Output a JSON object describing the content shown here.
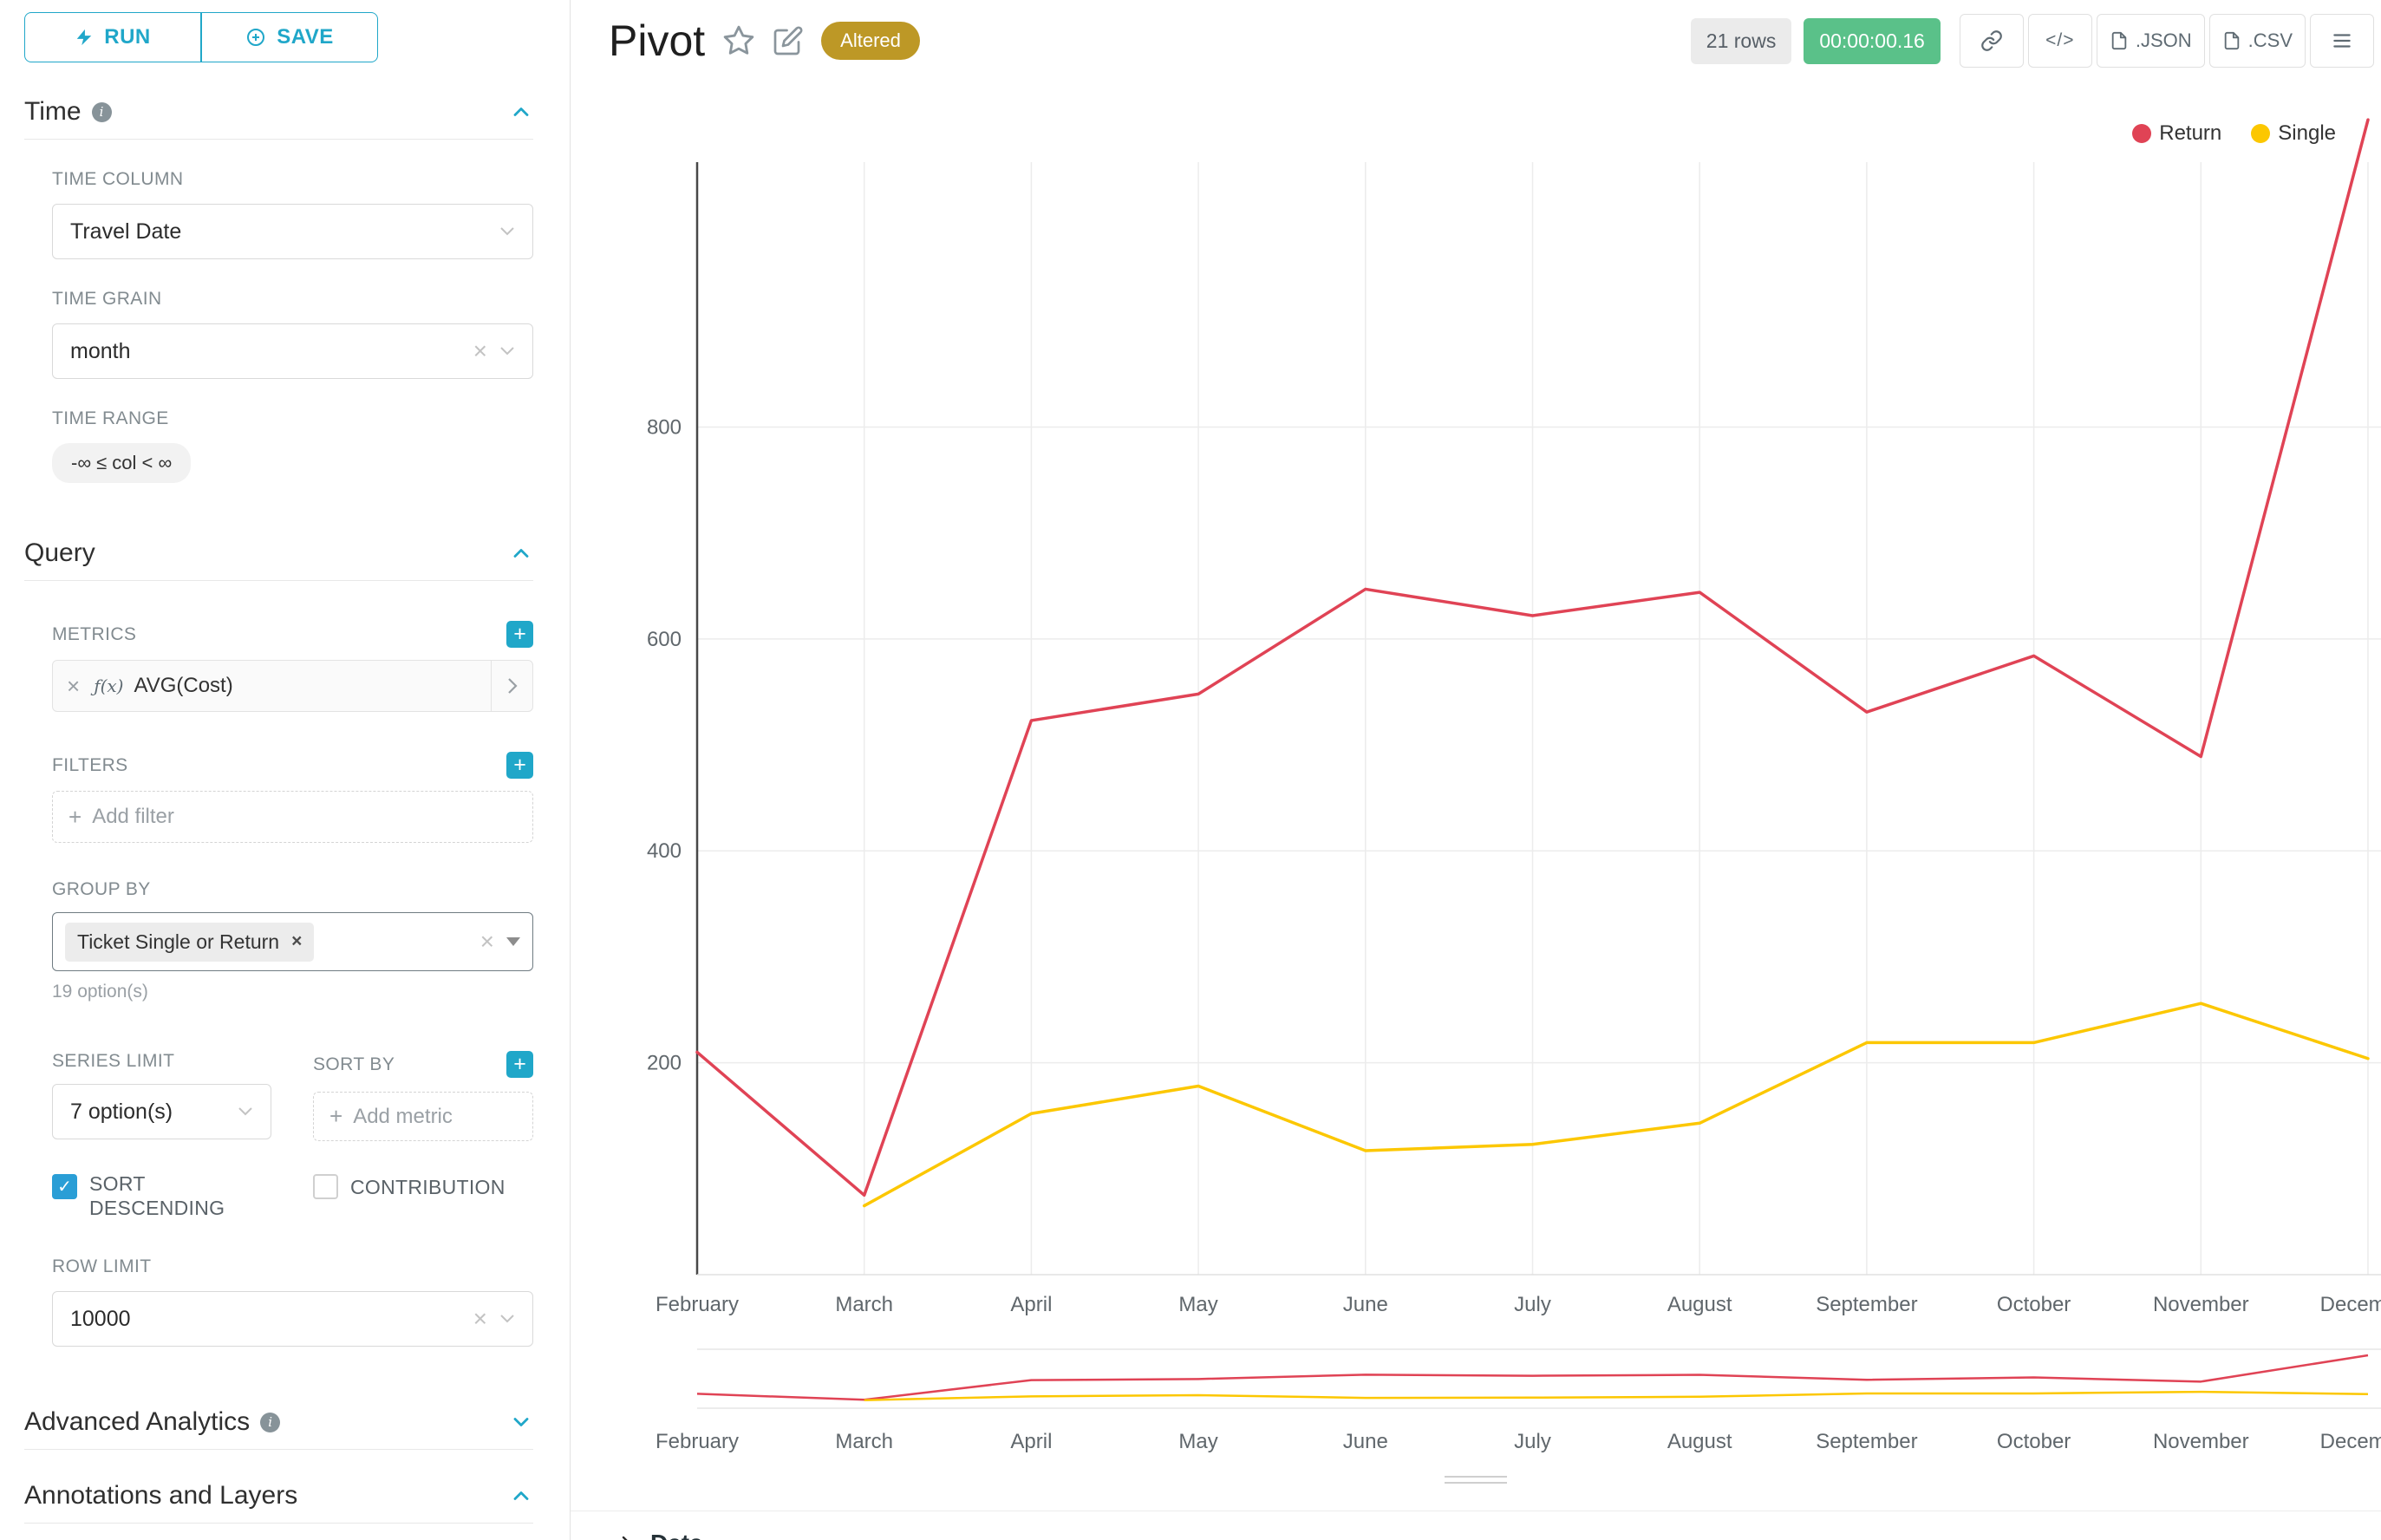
{
  "colors": {
    "accent": "#20a7c9",
    "altered_badge_bg": "#bd9826",
    "timer_bg": "#5ac189",
    "series_return": "#e04355",
    "series_single": "#fcc700"
  },
  "actions": {
    "run": "RUN",
    "save": "SAVE"
  },
  "sidebar": {
    "time": {
      "title": "Time",
      "time_column": {
        "label": "TIME COLUMN",
        "value": "Travel Date"
      },
      "time_grain": {
        "label": "TIME GRAIN",
        "value": "month"
      },
      "time_range": {
        "label": "TIME RANGE",
        "value": "-∞ ≤ col < ∞"
      }
    },
    "query": {
      "title": "Query",
      "metrics": {
        "label": "METRICS",
        "badge": "ƒ(x)",
        "value": "AVG(Cost)"
      },
      "filters": {
        "label": "FILTERS",
        "placeholder": "Add filter"
      },
      "group_by": {
        "label": "GROUP BY",
        "value": "Ticket Single or Return",
        "hint": "19 option(s)"
      },
      "series_limit": {
        "label": "SERIES LIMIT",
        "value": "7 option(s)"
      },
      "sort_by": {
        "label": "SORT BY",
        "placeholder": "Add metric"
      },
      "sort_descending": {
        "label": "SORT DESCENDING",
        "checked": true
      },
      "contribution": {
        "label": "CONTRIBUTION",
        "checked": false
      },
      "row_limit": {
        "label": "ROW LIMIT",
        "value": "10000"
      }
    },
    "advanced_analytics": {
      "title": "Advanced Analytics"
    },
    "annotations": {
      "title": "Annotations and Layers"
    }
  },
  "header": {
    "title": "Pivot",
    "altered_badge": "Altered",
    "rows_badge": "21 rows",
    "timer": "00:00:00.16",
    "export_json": ".JSON",
    "export_csv": ".CSV"
  },
  "chart_data": {
    "type": "line",
    "x": [
      "February",
      "March",
      "April",
      "May",
      "June",
      "July",
      "August",
      "September",
      "October",
      "November",
      "December"
    ],
    "series": [
      {
        "name": "Return",
        "color": "#e04355",
        "values": [
          210,
          75,
          523,
          548,
          647,
          622,
          644,
          531,
          584,
          489,
          1090
        ]
      },
      {
        "name": "Single",
        "color": "#fcc700",
        "values": [
          null,
          65,
          152,
          178,
          117,
          123,
          143,
          219,
          219,
          256,
          204
        ]
      }
    ],
    "title": "",
    "xlabel": "",
    "ylabel": "",
    "yticks": [
      200,
      400,
      600,
      800
    ],
    "ylim": [
      0,
      1050
    ],
    "grid": true,
    "legend_position": "top-right",
    "has_brush_minimap": true
  },
  "footer": {
    "data_label": "Data"
  }
}
